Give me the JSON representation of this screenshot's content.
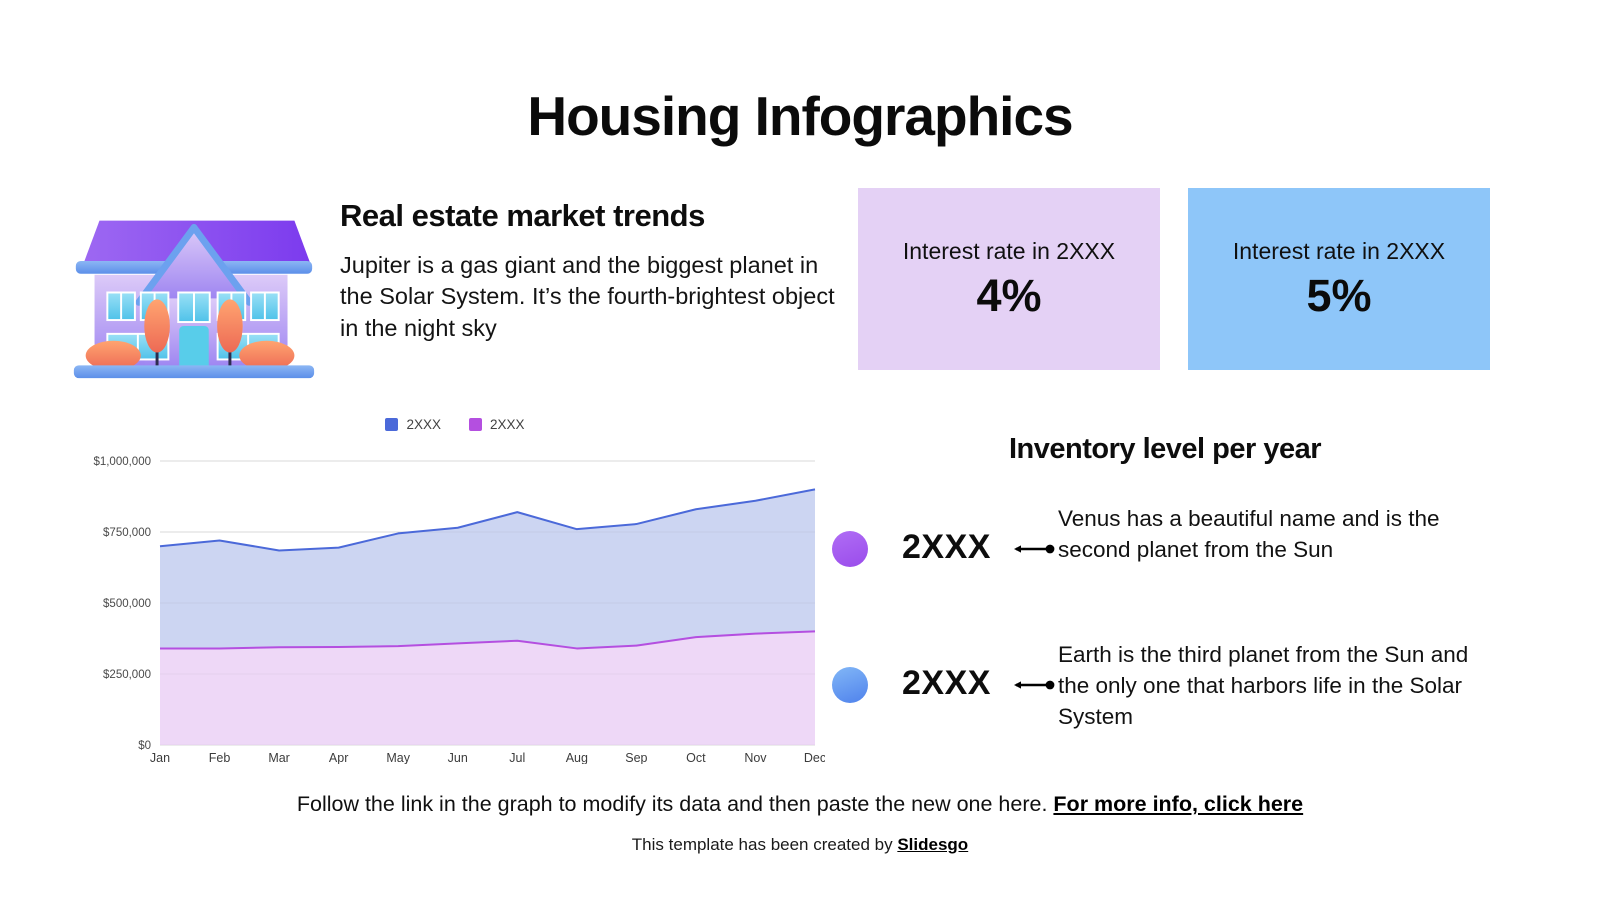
{
  "page": {
    "title": "Housing Infographics"
  },
  "market_section": {
    "heading": "Real estate market trends",
    "body": "Jupiter is a gas giant and the biggest planet in the Solar System. It’s the fourth-brightest object in the night sky"
  },
  "interest_cards": [
    {
      "label": "Interest rate in 2XXX",
      "value": "4%",
      "bg": "#e4d1f5"
    },
    {
      "label": "Interest rate in 2XXX",
      "value": "5%",
      "bg": "#8ec6f9"
    }
  ],
  "inventory_section": {
    "heading": "Inventory level per year",
    "items": [
      {
        "year": "2XXX",
        "color": "#9a4ceb",
        "color_light": "#b06df5",
        "description": "Venus has a beautiful name and is the second planet from the Sun"
      },
      {
        "year": "2XXX",
        "color": "#4f82ec",
        "color_light": "#82b7f7",
        "description": "Earth is the third planet from the Sun and the only one that harbors life in the Solar System"
      }
    ]
  },
  "footer": {
    "line1_text": "Follow the link in the graph to modify its data and then paste the new one here. ",
    "line1_link": "For more info, click here",
    "line2_text": "This template has been created by ",
    "line2_link": "Slidesgo"
  },
  "chart_data": {
    "type": "area",
    "title": "",
    "xlabel": "",
    "ylabel": "",
    "x": [
      "Jan",
      "Feb",
      "Mar",
      "Apr",
      "May",
      "Jun",
      "Jul",
      "Aug",
      "Sep",
      "Oct",
      "Nov",
      "Dec"
    ],
    "series": [
      {
        "name": "2XXX",
        "color": "#4b69d9",
        "fill": "#ccd5f2",
        "values": [
          700000,
          720000,
          685000,
          695000,
          745000,
          765000,
          820000,
          760000,
          778000,
          830000,
          860000,
          900000
        ]
      },
      {
        "name": "2XXX",
        "color": "#b44fe0",
        "fill": "#eed8f7",
        "values": [
          340000,
          340000,
          344000,
          345000,
          348000,
          358000,
          367000,
          340000,
          350000,
          380000,
          392000,
          400000
        ]
      }
    ],
    "ylim": [
      0,
      1000000
    ],
    "yticks": [
      {
        "v": 1000000,
        "label": "$1,000,000"
      },
      {
        "v": 750000,
        "label": "$750,000"
      },
      {
        "v": 500000,
        "label": "$500,000"
      },
      {
        "v": 250000,
        "label": "$250,000"
      },
      {
        "v": 0,
        "label": "$0"
      }
    ],
    "grid": true,
    "legend_position": "top"
  }
}
